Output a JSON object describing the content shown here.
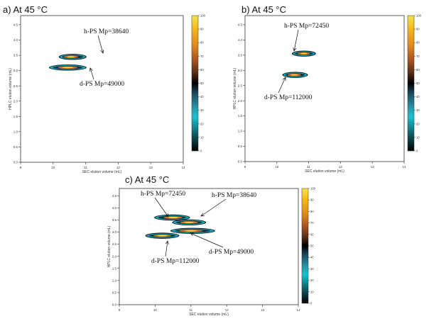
{
  "chart_data": [
    {
      "type": "heatmap",
      "panel_title": "a) At 45 °C",
      "xlabel": "SEC elution volume (mL)",
      "ylabel": "HPLC elution volume (mL)",
      "xticks": [
        "9",
        "10",
        "11",
        "12",
        "13",
        "14"
      ],
      "yticks": [
        "4.5",
        "4.0",
        "3.5",
        "3.0",
        "2.5",
        "2.0",
        "1.5",
        "1.0",
        "0.5",
        "0.0"
      ],
      "colorbar_ticks": [
        "100",
        "90",
        "80",
        "70",
        "60",
        "50",
        "40",
        "30",
        "20",
        "10",
        "0"
      ],
      "zlim": [
        0,
        100
      ],
      "peaks": [
        {
          "label": "h-PS Mp=38640",
          "x_range": [
            10.2,
            11.0
          ],
          "y": 3.45,
          "peak_x": 10.55,
          "intensity": 100
        },
        {
          "label": "d-PS Mp=49000",
          "x_range": [
            9.9,
            11.0
          ],
          "y": 3.1,
          "peak_x": 10.45,
          "intensity": 100
        }
      ]
    },
    {
      "type": "heatmap",
      "panel_title": "b) At 45 °C",
      "xlabel": "SEC elution volume (mL)",
      "ylabel": "HPLC elution volume (mL)",
      "xticks": [
        "9",
        "10",
        "11",
        "12",
        "13",
        "14"
      ],
      "yticks": [
        "4.5",
        "4.0",
        "3.5",
        "3.0",
        "2.5",
        "2.0",
        "1.5",
        "1.0",
        "0.5",
        "0.0"
      ],
      "colorbar_ticks": [
        "100",
        "90",
        "80",
        "70",
        "60",
        "50",
        "40",
        "30",
        "20",
        "10",
        "0"
      ],
      "zlim": [
        0,
        100
      ],
      "peaks": [
        {
          "label": "h-PS Mp=72450",
          "x_range": [
            10.5,
            11.2
          ],
          "y": 3.55,
          "peak_x": 10.85,
          "intensity": 100
        },
        {
          "label": "d-PS Mp=112000",
          "x_range": [
            10.2,
            10.95
          ],
          "y": 2.85,
          "peak_x": 10.55,
          "intensity": 100
        }
      ]
    },
    {
      "type": "heatmap",
      "panel_title": "c) At 45 °C",
      "xlabel": "SEC elution volume (mL)",
      "ylabel": "HPLC elution volume (mL)",
      "xticks": [
        "9",
        "10",
        "11",
        "12",
        "13",
        "14"
      ],
      "yticks": [
        "4.5",
        "4.0",
        "3.5",
        "3.0",
        "2.5",
        "2.0",
        "1.5",
        "1.0",
        "0.5",
        "0.0"
      ],
      "colorbar_ticks": [
        "100",
        "90",
        "80",
        "70",
        "60",
        "50",
        "40",
        "30",
        "20",
        "10",
        "0"
      ],
      "zlim": [
        0,
        100
      ],
      "peaks": [
        {
          "label": "h-PS Mp=72450",
          "x_range": [
            10.0,
            10.95
          ],
          "y": 3.6,
          "peak_x": 10.5,
          "intensity": 100
        },
        {
          "label": "h-PS Mp=38640",
          "x_range": [
            10.5,
            11.4
          ],
          "y": 3.4,
          "peak_x": 10.95,
          "intensity": 100
        },
        {
          "label": "d-PS Mp=49000",
          "x_range": [
            10.45,
            11.65
          ],
          "y": 3.05,
          "peak_x": 11.0,
          "intensity": 100
        },
        {
          "label": "d-PS Mp=112000",
          "x_range": [
            9.75,
            10.65
          ],
          "y": 2.85,
          "peak_x": 10.2,
          "intensity": 100
        }
      ]
    }
  ]
}
